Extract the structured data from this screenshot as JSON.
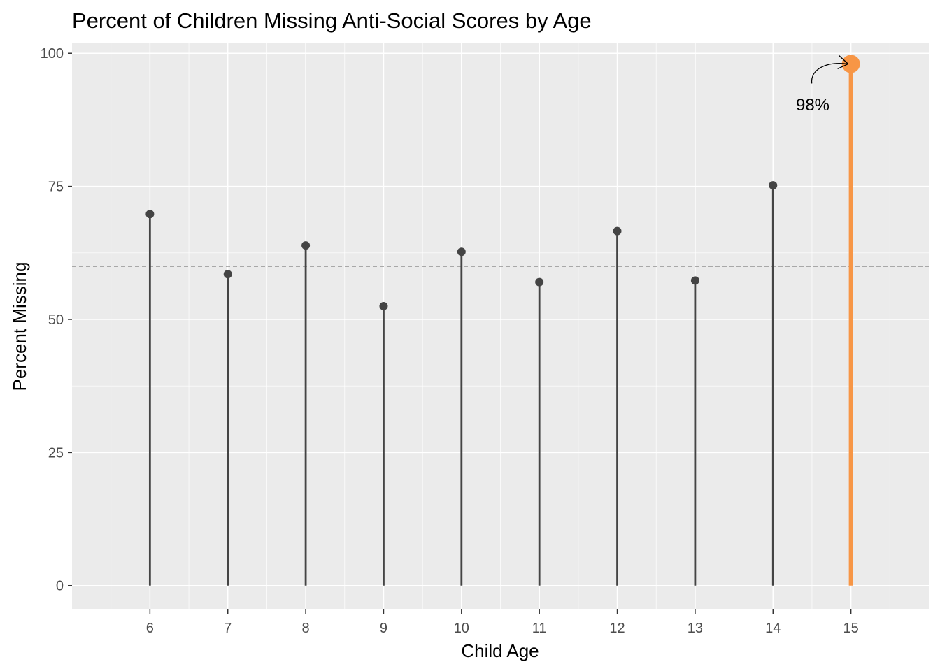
{
  "chart_data": {
    "type": "lollipop",
    "title": "Percent of Children Missing Anti-Social Scores by Age",
    "xlabel": "Child Age",
    "ylabel": "Percent Missing",
    "categories": [
      "6",
      "7",
      "8",
      "9",
      "10",
      "11",
      "12",
      "13",
      "14",
      "15"
    ],
    "values": [
      69.8,
      58.5,
      63.9,
      52.5,
      62.7,
      57.0,
      66.6,
      57.3,
      75.2,
      98.0
    ],
    "xlim": [
      5,
      16
    ],
    "ylim": [
      -4.5,
      102
    ],
    "y_ticks": [
      "0",
      "25",
      "50",
      "75",
      "100"
    ],
    "reference_line": 60,
    "highlight": {
      "category": "15",
      "color": "#f79646"
    },
    "annotation": {
      "text": "98%",
      "category": "15",
      "value": 98.0
    },
    "colors": {
      "stem": "#444444",
      "panel": "#ebebeb",
      "grid": "#ffffff",
      "reference": "#808080"
    },
    "grid": true,
    "legend": "none"
  }
}
